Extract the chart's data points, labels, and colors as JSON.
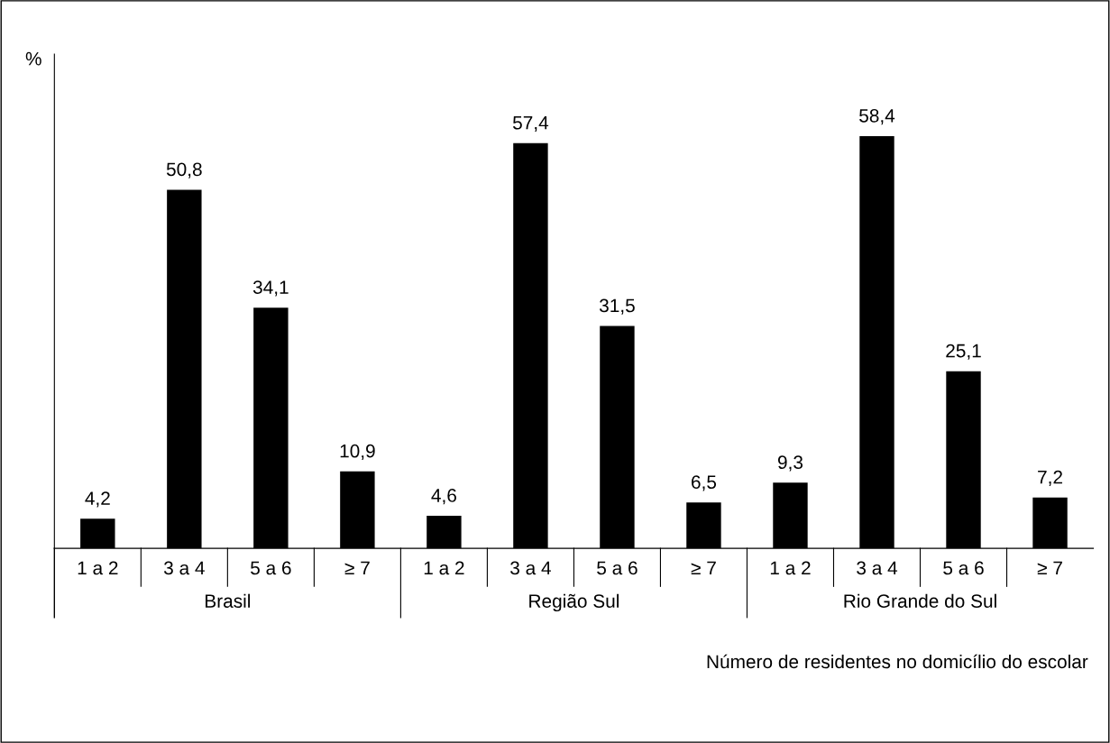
{
  "chart_data": {
    "type": "bar",
    "categories": [
      "1 a 2",
      "3 a 4",
      "5 a 6",
      "≥ 7",
      "1 a 2",
      "3 a 4",
      "5 a 6",
      "≥ 7",
      "1 a 2",
      "3 a 4",
      "5 a 6",
      "≥ 7"
    ],
    "values": [
      4.2,
      50.8,
      34.1,
      10.9,
      4.6,
      57.4,
      31.5,
      6.5,
      9.3,
      58.4,
      25.1,
      7.2
    ],
    "value_labels": [
      "4,2",
      "50,8",
      "34,1",
      "10,9",
      "4,6",
      "57,4",
      "31,5",
      "6,5",
      "9,3",
      "58,4",
      "25,1",
      "7,2"
    ],
    "color": "#000000",
    "ylim": [
      0,
      70
    ],
    "ylabel": "%",
    "xlabel": "Número de residentes no domicílio do escolar",
    "annotations": [
      "Brasil",
      "Região Sul",
      "Rio Grande do Sul"
    ],
    "grid": false,
    "legend": false
  }
}
